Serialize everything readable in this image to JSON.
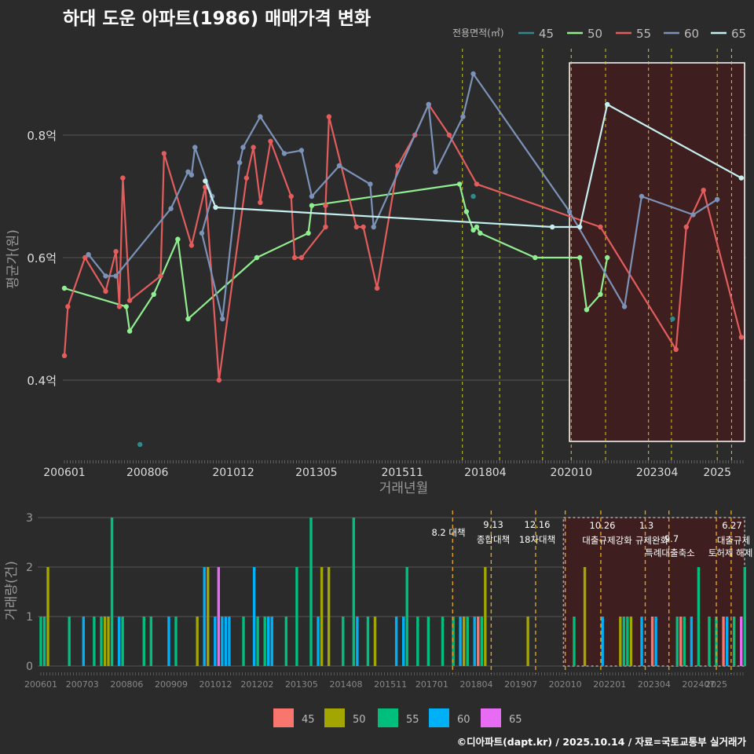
{
  "title": "하대 도운 아파트(1986) 매매가격 변화",
  "credit": "©디아파트(dapt.kr) / 2025.10.14 / 자료=국토교통부 실거래가",
  "colors": {
    "45": "#2e8b8b",
    "50": "#90ee90",
    "55": "#e35d5d",
    "60": "#7b93b8",
    "65": "#c6f0f0"
  },
  "bar_colors": {
    "45": "#f8766d",
    "50": "#a3a500",
    "55": "#00bf7d",
    "60": "#00b0f6",
    "65": "#e76bf3"
  },
  "chart_data": [
    {
      "type": "line",
      "title": "하대 도운 아파트(1986) 매매가격 변화",
      "xlabel": "거래년월",
      "ylabel": "평균가(원)",
      "x_tick_labels": [
        "200601",
        "200806",
        "201012",
        "201305",
        "201511",
        "201804",
        "202010",
        "202304",
        "2025"
      ],
      "y_tick_labels": [
        "0.4억",
        "0.6억",
        "0.8억"
      ],
      "y_ticks": [
        0.4,
        0.6,
        0.8
      ],
      "ylim": [
        0.27,
        0.97
      ],
      "legend_title": "전용면적(㎡)",
      "legend_position": "top-right",
      "series": [
        {
          "name": "45",
          "points": [
            [
              2008.2,
              0.295
            ],
            [
              2017.9,
              0.7
            ],
            [
              2023.7,
              0.5
            ]
          ]
        },
        {
          "name": "50",
          "points": [
            [
              2006.0,
              0.55
            ],
            [
              2007.8,
              0.52
            ],
            [
              2007.9,
              0.48
            ],
            [
              2008.6,
              0.54
            ],
            [
              2009.3,
              0.63
            ],
            [
              2009.6,
              0.5
            ],
            [
              2011.6,
              0.6
            ],
            [
              2013.1,
              0.64
            ],
            [
              2013.2,
              0.685
            ],
            [
              2017.5,
              0.72
            ],
            [
              2017.7,
              0.675
            ],
            [
              2017.9,
              0.645
            ],
            [
              2018.0,
              0.65
            ],
            [
              2018.1,
              0.64
            ],
            [
              2019.7,
              0.6
            ],
            [
              2021.0,
              0.6
            ],
            [
              2021.2,
              0.515
            ],
            [
              2021.6,
              0.54
            ],
            [
              2021.8,
              0.6
            ]
          ]
        },
        {
          "name": "55",
          "points": [
            [
              2006.0,
              0.44
            ],
            [
              2006.1,
              0.52
            ],
            [
              2006.6,
              0.6
            ],
            [
              2007.2,
              0.545
            ],
            [
              2007.5,
              0.61
            ],
            [
              2007.6,
              0.52
            ],
            [
              2007.7,
              0.73
            ],
            [
              2007.9,
              0.53
            ],
            [
              2008.8,
              0.57
            ],
            [
              2008.9,
              0.77
            ],
            [
              2009.7,
              0.62
            ],
            [
              2010.1,
              0.715
            ],
            [
              2010.5,
              0.4
            ],
            [
              2011.3,
              0.73
            ],
            [
              2011.5,
              0.78
            ],
            [
              2011.7,
              0.69
            ],
            [
              2012.0,
              0.79
            ],
            [
              2012.6,
              0.7
            ],
            [
              2012.7,
              0.6
            ],
            [
              2012.9,
              0.6
            ],
            [
              2013.6,
              0.65
            ],
            [
              2013.6,
              0.685
            ],
            [
              2013.7,
              0.83
            ],
            [
              2014.5,
              0.65
            ],
            [
              2014.7,
              0.65
            ],
            [
              2015.1,
              0.55
            ],
            [
              2015.7,
              0.75
            ],
            [
              2016.2,
              0.8
            ],
            [
              2016.6,
              0.85
            ],
            [
              2017.2,
              0.8
            ],
            [
              2018.0,
              0.72
            ],
            [
              2021.6,
              0.65
            ],
            [
              2023.8,
              0.45
            ],
            [
              2024.1,
              0.65
            ],
            [
              2024.6,
              0.71
            ],
            [
              2025.7,
              0.47
            ]
          ]
        },
        {
          "name": "60",
          "points": [
            [
              2006.7,
              0.605
            ],
            [
              2007.2,
              0.57
            ],
            [
              2007.5,
              0.57
            ],
            [
              2009.1,
              0.68
            ],
            [
              2009.6,
              0.74
            ],
            [
              2009.7,
              0.735
            ],
            [
              2009.8,
              0.78
            ],
            [
              2010.3,
              0.7
            ],
            [
              2010.0,
              0.64
            ],
            [
              2010.6,
              0.5
            ],
            [
              2011.1,
              0.755
            ],
            [
              2011.2,
              0.78
            ],
            [
              2011.7,
              0.83
            ],
            [
              2012.4,
              0.77
            ],
            [
              2012.9,
              0.775
            ],
            [
              2013.2,
              0.7
            ],
            [
              2014.0,
              0.75
            ],
            [
              2014.9,
              0.72
            ],
            [
              2015.0,
              0.65
            ],
            [
              2016.6,
              0.85
            ],
            [
              2016.8,
              0.74
            ],
            [
              2017.6,
              0.83
            ],
            [
              2017.9,
              0.9
            ],
            [
              2020.7,
              0.675
            ],
            [
              2022.3,
              0.52
            ],
            [
              2022.8,
              0.7
            ],
            [
              2024.3,
              0.67
            ],
            [
              2025.0,
              0.695
            ]
          ]
        },
        {
          "name": "65",
          "points": [
            [
              2010.1,
              0.725
            ],
            [
              2010.4,
              0.682
            ],
            [
              2020.2,
              0.65
            ],
            [
              2021.0,
              0.65
            ],
            [
              2021.8,
              0.85
            ],
            [
              2025.7,
              0.73
            ]
          ]
        }
      ],
      "policy_dates": [
        "201708",
        "201809",
        "201912",
        "202010",
        "202110",
        "202301",
        "202309",
        "202501",
        "202506"
      ]
    },
    {
      "type": "bar",
      "xlabel": "",
      "ylabel": "거래량(건)",
      "ylim": [
        0,
        3
      ],
      "y_tick_labels": [
        "0",
        "1",
        "2",
        "3"
      ],
      "x_tick_labels": [
        "200601",
        "200703",
        "200806",
        "200909",
        "201012",
        "201202",
        "201305",
        "201408",
        "201511",
        "201701",
        "201804",
        "201907",
        "202010",
        "202201",
        "202304",
        "202407",
        "2025"
      ],
      "annotations": [
        "8.2 대책",
        "9.13",
        "종합대책",
        "12.16",
        "18차대책",
        "10.26",
        "대출규제강화",
        "1.3",
        "규제완화",
        "9.7",
        "특례대출축소",
        "토허제 해제",
        "6.27",
        "대출규제"
      ],
      "legend_items": [
        "45",
        "50",
        "55",
        "60",
        "65"
      ],
      "legend_position": "bottom",
      "bars": [
        [
          2006.0,
          "55",
          1
        ],
        [
          2006.1,
          "55",
          1
        ],
        [
          2006.2,
          "50",
          2
        ],
        [
          2006.8,
          "55",
          1
        ],
        [
          2007.2,
          "60",
          1
        ],
        [
          2007.5,
          "55",
          1
        ],
        [
          2007.7,
          "55",
          1
        ],
        [
          2007.8,
          "50",
          1
        ],
        [
          2007.9,
          "50",
          1
        ],
        [
          2008.0,
          "55",
          3
        ],
        [
          2008.2,
          "60",
          1
        ],
        [
          2008.3,
          "55",
          1
        ],
        [
          2008.9,
          "55",
          1
        ],
        [
          2009.1,
          "55",
          1
        ],
        [
          2009.6,
          "60",
          1
        ],
        [
          2009.8,
          "55",
          1
        ],
        [
          2010.4,
          "50",
          1
        ],
        [
          2010.6,
          "60",
          2
        ],
        [
          2010.7,
          "50",
          2
        ],
        [
          2010.9,
          "60",
          1
        ],
        [
          2011.0,
          "65",
          2
        ],
        [
          2011.1,
          "60",
          1
        ],
        [
          2011.2,
          "60",
          1
        ],
        [
          2011.3,
          "60",
          1
        ],
        [
          2011.7,
          "55",
          1
        ],
        [
          2012.0,
          "60",
          2
        ],
        [
          2012.1,
          "55",
          1
        ],
        [
          2012.3,
          "55",
          1
        ],
        [
          2012.4,
          "60",
          1
        ],
        [
          2012.5,
          "60",
          1
        ],
        [
          2012.9,
          "55",
          1
        ],
        [
          2013.2,
          "55",
          2
        ],
        [
          2013.6,
          "55",
          3
        ],
        [
          2013.8,
          "60",
          1
        ],
        [
          2013.9,
          "50",
          2
        ],
        [
          2014.1,
          "50",
          2
        ],
        [
          2014.5,
          "55",
          1
        ],
        [
          2014.8,
          "55",
          3
        ],
        [
          2014.9,
          "60",
          1
        ],
        [
          2015.2,
          "55",
          1
        ],
        [
          2015.4,
          "50",
          1
        ],
        [
          2016.0,
          "60",
          1
        ],
        [
          2016.2,
          "60",
          1
        ],
        [
          2016.3,
          "55",
          2
        ],
        [
          2016.6,
          "55",
          1
        ],
        [
          2016.9,
          "55",
          1
        ],
        [
          2017.3,
          "55",
          1
        ],
        [
          2017.6,
          "55",
          1
        ],
        [
          2017.8,
          "60",
          1
        ],
        [
          2017.9,
          "50",
          1
        ],
        [
          2018.0,
          "55",
          1
        ],
        [
          2018.2,
          "60",
          1
        ],
        [
          2018.3,
          "45",
          1
        ],
        [
          2018.4,
          "55",
          1
        ],
        [
          2018.5,
          "50",
          2
        ],
        [
          2019.7,
          "50",
          1
        ],
        [
          2021.0,
          "55",
          1
        ],
        [
          2021.3,
          "50",
          2
        ],
        [
          2021.8,
          "60",
          1
        ],
        [
          2022.3,
          "50",
          1
        ],
        [
          2022.4,
          "55",
          1
        ],
        [
          2022.5,
          "55",
          1
        ],
        [
          2022.6,
          "50",
          1
        ],
        [
          2022.9,
          "60",
          1
        ],
        [
          2023.2,
          "45",
          1
        ],
        [
          2023.3,
          "60",
          1
        ],
        [
          2023.9,
          "55",
          1
        ],
        [
          2024.0,
          "45",
          1
        ],
        [
          2024.1,
          "55",
          1
        ],
        [
          2024.3,
          "60",
          1
        ],
        [
          2024.5,
          "55",
          2
        ],
        [
          2024.8,
          "55",
          1
        ],
        [
          2025.0,
          "55",
          1
        ],
        [
          2025.2,
          "45",
          1
        ],
        [
          2025.3,
          "60",
          1
        ],
        [
          2025.5,
          "55",
          1
        ],
        [
          2025.7,
          "65",
          1
        ],
        [
          2025.8,
          "55",
          2
        ]
      ]
    }
  ]
}
